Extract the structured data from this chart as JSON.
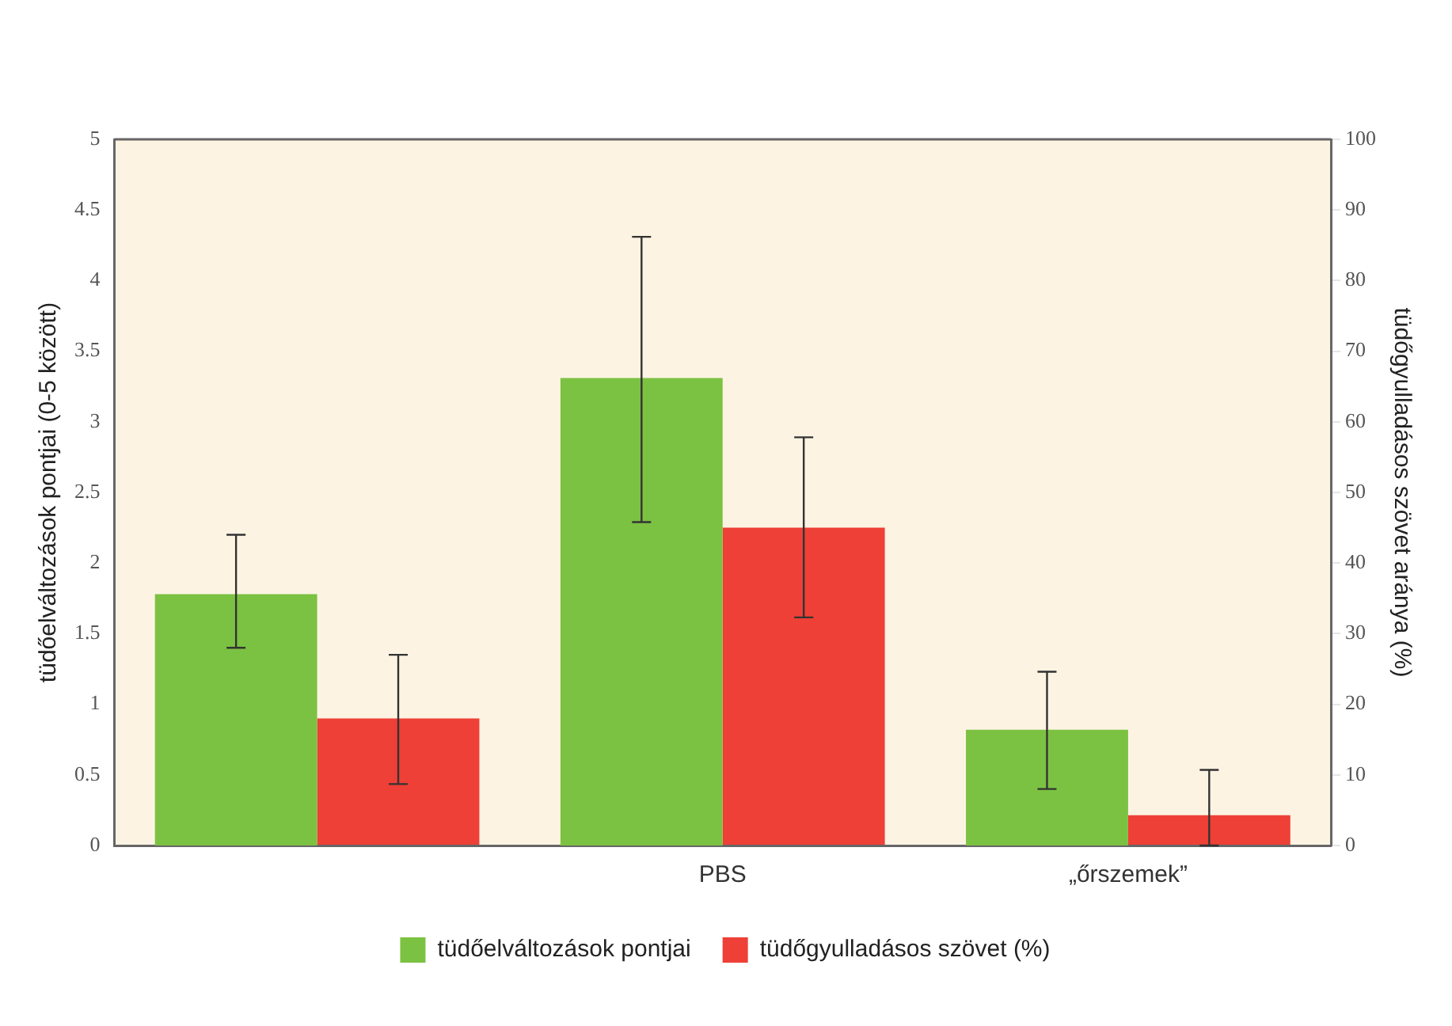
{
  "chart_data": {
    "type": "bar",
    "categories": [
      null,
      "PBS",
      "„őrszemek”"
    ],
    "ylabel": "tüdőelváltozások pontjai (0-5 között)",
    "y2label": "tüdőgyulladásos szövet aránya (%)",
    "ylim": [
      0,
      5
    ],
    "yticks": [
      0,
      0.5,
      1,
      1.5,
      2,
      2.5,
      3,
      3.5,
      4,
      4.5,
      5
    ],
    "y2lim": [
      0,
      100
    ],
    "y2ticks": [
      0,
      10,
      20,
      30,
      40,
      50,
      60,
      70,
      80,
      90,
      100
    ],
    "series": [
      {
        "name": "tüdőelváltozások pontjai",
        "color": "#7cc242",
        "values": [
          1.78,
          3.31,
          0.82
        ],
        "errors": [
          [
            1.4,
            2.2
          ],
          [
            2.29,
            4.31
          ],
          [
            0.4,
            1.23
          ]
        ]
      },
      {
        "name": "tüdőgyulladásos szövet (%)",
        "color": "#ee4036",
        "axis": "y2",
        "values": [
          18,
          45,
          4.3
        ],
        "errors": [
          [
            8.7,
            27
          ],
          [
            32.3,
            57.8
          ],
          [
            0,
            10.7
          ]
        ]
      }
    ],
    "grid": false,
    "legend": "bottom"
  }
}
